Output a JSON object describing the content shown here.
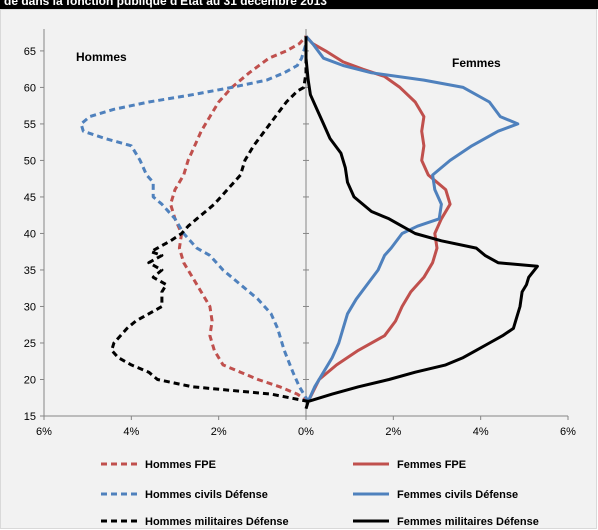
{
  "title": "de dans la fonction publique d'Etat au 31 décembre 2013",
  "chart_data": {
    "type": "line",
    "title": "",
    "xlabel": "",
    "ylabel": "",
    "xlim": [
      -6,
      6
    ],
    "ylim": [
      15,
      68
    ],
    "x_ticks": [
      -6,
      -4,
      -2,
      0,
      2,
      4,
      6
    ],
    "x_tick_labels": [
      "6%",
      "4%",
      "2%",
      "0%",
      "2%",
      "4%",
      "6%"
    ],
    "y_ticks": [
      15,
      20,
      25,
      30,
      35,
      40,
      45,
      50,
      55,
      60,
      65
    ],
    "y_tick_labels": [
      "15",
      "20",
      "25",
      "30",
      "35",
      "40",
      "45",
      "50",
      "55",
      "60",
      "65"
    ],
    "grid": false,
    "legend_position": "bottom",
    "annotations": {
      "left": "Hommes",
      "right": "Femmes"
    },
    "series": [
      {
        "name": "Hommes FPE",
        "color": "#c0504d",
        "dash": "dashed",
        "points": [
          [
            0.05,
            17
          ],
          [
            -0.2,
            18
          ],
          [
            -0.6,
            19
          ],
          [
            -1.1,
            20
          ],
          [
            -1.5,
            21
          ],
          [
            -1.9,
            22
          ],
          [
            -2.1,
            24
          ],
          [
            -2.2,
            26
          ],
          [
            -2.15,
            28
          ],
          [
            -2.2,
            30
          ],
          [
            -2.4,
            32
          ],
          [
            -2.6,
            34
          ],
          [
            -2.8,
            36
          ],
          [
            -2.9,
            38
          ],
          [
            -2.85,
            40
          ],
          [
            -3.0,
            42
          ],
          [
            -3.1,
            44
          ],
          [
            -3.0,
            46
          ],
          [
            -2.8,
            48
          ],
          [
            -2.7,
            50
          ],
          [
            -2.55,
            52
          ],
          [
            -2.4,
            54
          ],
          [
            -2.2,
            56
          ],
          [
            -2.0,
            58
          ],
          [
            -1.7,
            60
          ],
          [
            -1.3,
            62
          ],
          [
            -0.85,
            64
          ],
          [
            -0.45,
            65
          ],
          [
            -0.15,
            66
          ],
          [
            0,
            67
          ]
        ]
      },
      {
        "name": "Femmes FPE",
        "color": "#c0504d",
        "dash": "solid",
        "points": [
          [
            0.05,
            17
          ],
          [
            0.3,
            20
          ],
          [
            0.7,
            22
          ],
          [
            1.2,
            24
          ],
          [
            1.8,
            26
          ],
          [
            2.05,
            28
          ],
          [
            2.2,
            30
          ],
          [
            2.4,
            32
          ],
          [
            2.7,
            34
          ],
          [
            2.9,
            36
          ],
          [
            3.0,
            38
          ],
          [
            2.95,
            40
          ],
          [
            3.1,
            42
          ],
          [
            3.3,
            44
          ],
          [
            3.2,
            46
          ],
          [
            3.0,
            47
          ],
          [
            2.8,
            48
          ],
          [
            2.65,
            50
          ],
          [
            2.7,
            52
          ],
          [
            2.65,
            54
          ],
          [
            2.7,
            56
          ],
          [
            2.5,
            58
          ],
          [
            2.15,
            60
          ],
          [
            1.8,
            61.5
          ],
          [
            1.3,
            62.5
          ],
          [
            0.85,
            63.5
          ],
          [
            0.45,
            65
          ],
          [
            0.15,
            66
          ],
          [
            0,
            67
          ]
        ]
      },
      {
        "name": "Hommes civils Défense",
        "color": "#4f81bd",
        "dash": "dashed",
        "points": [
          [
            0.05,
            17
          ],
          [
            -0.15,
            19
          ],
          [
            -0.3,
            21
          ],
          [
            -0.5,
            24
          ],
          [
            -0.65,
            27
          ],
          [
            -0.8,
            29
          ],
          [
            -1.1,
            31
          ],
          [
            -1.5,
            33
          ],
          [
            -1.9,
            35
          ],
          [
            -2.2,
            37
          ],
          [
            -2.5,
            38
          ],
          [
            -2.8,
            40
          ],
          [
            -3.0,
            42
          ],
          [
            -3.3,
            44
          ],
          [
            -3.5,
            45
          ],
          [
            -3.5,
            47
          ],
          [
            -3.65,
            48
          ],
          [
            -3.8,
            50
          ],
          [
            -4.0,
            52
          ],
          [
            -4.6,
            53
          ],
          [
            -5.1,
            54
          ],
          [
            -5.15,
            55
          ],
          [
            -4.95,
            56
          ],
          [
            -4.4,
            57
          ],
          [
            -3.6,
            58
          ],
          [
            -2.6,
            59
          ],
          [
            -1.7,
            60
          ],
          [
            -0.9,
            61
          ],
          [
            -0.5,
            62
          ],
          [
            -0.2,
            63
          ],
          [
            -0.1,
            64
          ],
          [
            -0.05,
            65
          ],
          [
            0,
            66
          ]
        ]
      },
      {
        "name": "Femmes civils Défense",
        "color": "#4f81bd",
        "dash": "solid",
        "points": [
          [
            0.05,
            17
          ],
          [
            0.2,
            19
          ],
          [
            0.4,
            21
          ],
          [
            0.6,
            23
          ],
          [
            0.75,
            25
          ],
          [
            0.85,
            27
          ],
          [
            0.95,
            29
          ],
          [
            1.15,
            31
          ],
          [
            1.4,
            33
          ],
          [
            1.65,
            35
          ],
          [
            1.8,
            37
          ],
          [
            1.95,
            38
          ],
          [
            2.2,
            40
          ],
          [
            2.55,
            41
          ],
          [
            3.05,
            42
          ],
          [
            3.1,
            44
          ],
          [
            2.95,
            46
          ],
          [
            2.9,
            48
          ],
          [
            3.3,
            50
          ],
          [
            3.8,
            52
          ],
          [
            4.4,
            54
          ],
          [
            4.85,
            55
          ],
          [
            4.45,
            56
          ],
          [
            4.2,
            58
          ],
          [
            3.6,
            60
          ],
          [
            2.7,
            61
          ],
          [
            1.5,
            62
          ],
          [
            0.85,
            63
          ],
          [
            0.4,
            64
          ],
          [
            0.15,
            66
          ],
          [
            0,
            67
          ]
        ]
      },
      {
        "name": "Hommes militaires Défense",
        "color": "#000000",
        "dash": "dashed",
        "points": [
          [
            0.05,
            17
          ],
          [
            -0.8,
            18
          ],
          [
            -2.6,
            19
          ],
          [
            -3.4,
            20
          ],
          [
            -3.6,
            21
          ],
          [
            -4.0,
            22
          ],
          [
            -4.3,
            23
          ],
          [
            -4.45,
            24
          ],
          [
            -4.4,
            25
          ],
          [
            -4.1,
            27
          ],
          [
            -3.9,
            28
          ],
          [
            -3.6,
            29
          ],
          [
            -3.3,
            30
          ],
          [
            -3.3,
            32
          ],
          [
            -3.2,
            33
          ],
          [
            -3.5,
            34
          ],
          [
            -3.3,
            35
          ],
          [
            -3.6,
            36
          ],
          [
            -3.3,
            37
          ],
          [
            -3.55,
            37.5
          ],
          [
            -3.4,
            38
          ],
          [
            -3.1,
            39
          ],
          [
            -2.85,
            40
          ],
          [
            -2.7,
            41
          ],
          [
            -2.5,
            42
          ],
          [
            -2.3,
            43
          ],
          [
            -2.1,
            44
          ],
          [
            -1.8,
            46
          ],
          [
            -1.5,
            48
          ],
          [
            -1.4,
            50
          ],
          [
            -1.2,
            52
          ],
          [
            -0.95,
            54
          ],
          [
            -0.7,
            56
          ],
          [
            -0.45,
            58
          ],
          [
            -0.2,
            59.5
          ],
          [
            -0.05,
            60
          ],
          [
            0,
            62
          ],
          [
            0,
            67
          ]
        ]
      },
      {
        "name": "Femmes militaires Défense",
        "color": "#000000",
        "dash": "solid",
        "points": [
          [
            0,
            16
          ],
          [
            0.05,
            17
          ],
          [
            0.6,
            18
          ],
          [
            1.2,
            19
          ],
          [
            1.9,
            20
          ],
          [
            2.5,
            21
          ],
          [
            3.2,
            22
          ],
          [
            3.6,
            23
          ],
          [
            3.9,
            24
          ],
          [
            4.2,
            25
          ],
          [
            4.5,
            26
          ],
          [
            4.75,
            27
          ],
          [
            4.8,
            28
          ],
          [
            4.9,
            30
          ],
          [
            4.95,
            32
          ],
          [
            5.05,
            33
          ],
          [
            5.1,
            34
          ],
          [
            5.3,
            35.5
          ],
          [
            4.4,
            36
          ],
          [
            4.1,
            37
          ],
          [
            3.9,
            38
          ],
          [
            3.1,
            39
          ],
          [
            2.5,
            40
          ],
          [
            2.2,
            41
          ],
          [
            1.9,
            42
          ],
          [
            1.5,
            43
          ],
          [
            1.1,
            45
          ],
          [
            0.95,
            47
          ],
          [
            0.9,
            49
          ],
          [
            0.8,
            51
          ],
          [
            0.55,
            53
          ],
          [
            0.4,
            55
          ],
          [
            0.25,
            57
          ],
          [
            0.1,
            59
          ],
          [
            0.05,
            61
          ],
          [
            0,
            64
          ],
          [
            0,
            67
          ]
        ]
      }
    ]
  }
}
